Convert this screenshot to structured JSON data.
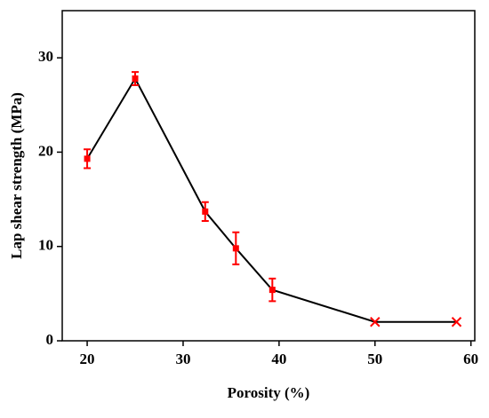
{
  "chart_data": {
    "type": "line",
    "x_label": "Porosity (%)",
    "y_label": "Lap shear strength (MPa)",
    "series": [
      {
        "color": "#ff0000",
        "line_color": "#000000",
        "x": [
          20,
          25,
          32.3,
          35.5,
          39.3,
          50,
          58.5
        ],
        "values": [
          19.3,
          27.8,
          13.7,
          9.8,
          5.4,
          2,
          2
        ],
        "errors": [
          1.0,
          0.7,
          1.0,
          1.7,
          1.2,
          null,
          null
        ],
        "markers": [
          "square",
          "square",
          "square",
          "square",
          "square",
          "x",
          "x"
        ]
      }
    ],
    "xlim": [
      17.4,
      60.4
    ],
    "xticks": [
      20,
      30,
      40,
      50,
      60
    ],
    "ylim": [
      0,
      35
    ],
    "yticks": [
      0,
      10,
      20,
      30
    ]
  }
}
